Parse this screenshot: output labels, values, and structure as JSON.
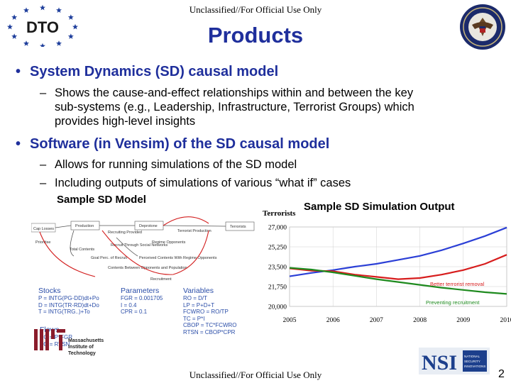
{
  "classification": "Unclassified//For Official Use Only",
  "logo_text": "DTO",
  "title": "Products",
  "bullets": [
    {
      "text": "System Dynamics (SD) causal model",
      "subs": [
        [
          "Shows the cause-and-effect relationships within and between the key",
          "sub-systems (e.g., Leadership, Infrastructure, Terrorist Groups) which",
          "provides high-level insights"
        ]
      ]
    },
    {
      "text": "Software (in Vensim) of the SD causal model",
      "subs": [
        [
          "Allows for running simulations of the SD model"
        ],
        [
          "Including outputs of simulations of various “what if” cases"
        ]
      ]
    }
  ],
  "captions": {
    "model": "Sample SD Model",
    "simulation": "Sample SD Simulation Output"
  },
  "sd_model": {
    "nodes": [
      "Cap Losses",
      "Production",
      "Deprotone",
      "Terrorists",
      "Prioritise",
      "Total Contents",
      "Recruiting Provided",
      "Recruit Through Social Networks",
      "Regime Opponents",
      "Terrorist Production",
      "Goal Perc. of Recruit",
      "Perceived Contents With Regime Opponents",
      "Contents Between Opponents and Population",
      "Recruitment"
    ]
  },
  "legend": {
    "stocks": {
      "title": "Stocks",
      "lines": [
        "P = INTG(PG-DD)dt+Po",
        "D = INTG(TR-RD)dt+Do",
        "T = INTG(TRG..)+To"
      ]
    },
    "parameters": {
      "title": "Parameters",
      "lines": [
        "FGR = 0.001705",
        "I = 0.4",
        "CPR = 0.1"
      ]
    },
    "variables": {
      "title": "Variables",
      "lines": [
        "RO = D/T",
        "LP = P+D+T",
        "FCWRO = RO/TP",
        "TC = P*I",
        "CBOP = TC*FCWRO",
        "RTSN = CBOP*CPR"
      ]
    },
    "flows": {
      "title": "Flows",
      "lines": [
        "PG = P*FGR",
        "DD = RTSN"
      ]
    }
  },
  "chart_data": {
    "type": "line",
    "ylabel": "Terrorists",
    "xlim": [
      2005,
      2010
    ],
    "ylim": [
      20000,
      27000
    ],
    "yticks": [
      "27,000",
      "25,250",
      "23,500",
      "21,750",
      "20,000"
    ],
    "xticks": [
      "2005",
      "2006",
      "2007",
      "2008",
      "2009",
      "2010"
    ],
    "grid": true,
    "series": [
      {
        "name": "",
        "color": "#2b3fd6",
        "x": [
          2005,
          2005.5,
          2006,
          2006.5,
          2007,
          2007.5,
          2008,
          2008.5,
          2009,
          2009.5,
          2010
        ],
        "y": [
          22650,
          22950,
          23200,
          23500,
          23750,
          24100,
          24450,
          24950,
          25550,
          26200,
          26950
        ]
      },
      {
        "name": "Better terrorist removal",
        "color": "#d71d1d",
        "x": [
          2005,
          2005.5,
          2006,
          2006.5,
          2007,
          2007.5,
          2008,
          2008.5,
          2009,
          2009.5,
          2010
        ],
        "y": [
          23350,
          23150,
          23100,
          22800,
          22600,
          22400,
          22500,
          22800,
          23200,
          23750,
          24550
        ]
      },
      {
        "name": "Preventing recruitment",
        "color": "#1e8a1e",
        "x": [
          2005,
          2005.5,
          2006,
          2006.5,
          2007,
          2007.5,
          2008,
          2008.5,
          2009,
          2009.5,
          2010
        ],
        "y": [
          23400,
          23250,
          23000,
          22700,
          22400,
          22150,
          21900,
          21650,
          21450,
          21250,
          21100
        ]
      }
    ]
  },
  "mit_logo": {
    "lines": [
      "Massachusetts",
      "Institute of",
      "Technology"
    ]
  },
  "nsi_logo": {
    "text": "NSI",
    "lines": [
      "NATIONAL",
      "SECURITY",
      "INNOVATIONS"
    ]
  },
  "page_number": "2",
  "colors": {
    "title": "#1f2f9c",
    "bullet": "#1f2f9c",
    "legend": "#2a4da8"
  }
}
